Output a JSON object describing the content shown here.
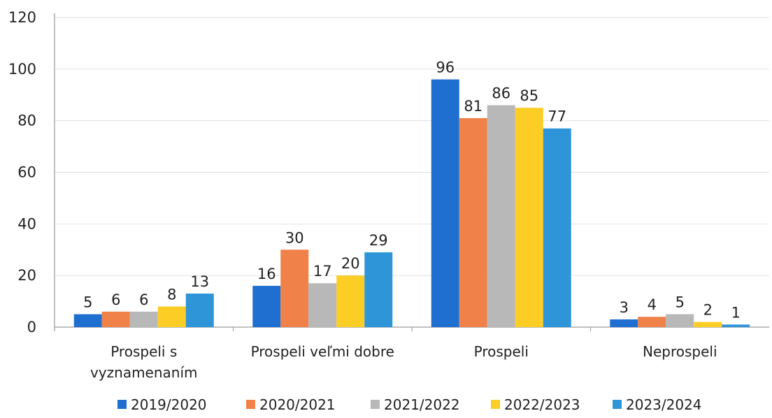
{
  "chart_data": {
    "type": "bar",
    "categories": [
      "Prospeli s vyznamenaním",
      "Prospeli veľmi dobre",
      "Prospeli",
      "Neprospeli"
    ],
    "category_lines": [
      [
        "Prospeli s",
        "vyznamenaním"
      ],
      [
        "Prospeli veľmi dobre"
      ],
      [
        "Prospeli"
      ],
      [
        "Neprospeli"
      ]
    ],
    "series": [
      {
        "name": "2019/2020",
        "color": "#1f6fd1",
        "values": [
          5,
          16,
          96,
          3
        ]
      },
      {
        "name": "2020/2021",
        "color": "#ef8149",
        "values": [
          6,
          30,
          81,
          4
        ]
      },
      {
        "name": "2021/2022",
        "color": "#b8b8b8",
        "values": [
          6,
          17,
          86,
          5
        ]
      },
      {
        "name": "2022/2023",
        "color": "#fccd25",
        "values": [
          8,
          20,
          85,
          2
        ]
      },
      {
        "name": "2023/2024",
        "color": "#2f95d9",
        "values": [
          13,
          29,
          77,
          1
        ]
      }
    ],
    "ylim": [
      0,
      120
    ],
    "yticks": [
      "0",
      "20",
      "40",
      "60",
      "80",
      "100",
      "120"
    ],
    "grid": true,
    "legend_position": "bottom"
  }
}
